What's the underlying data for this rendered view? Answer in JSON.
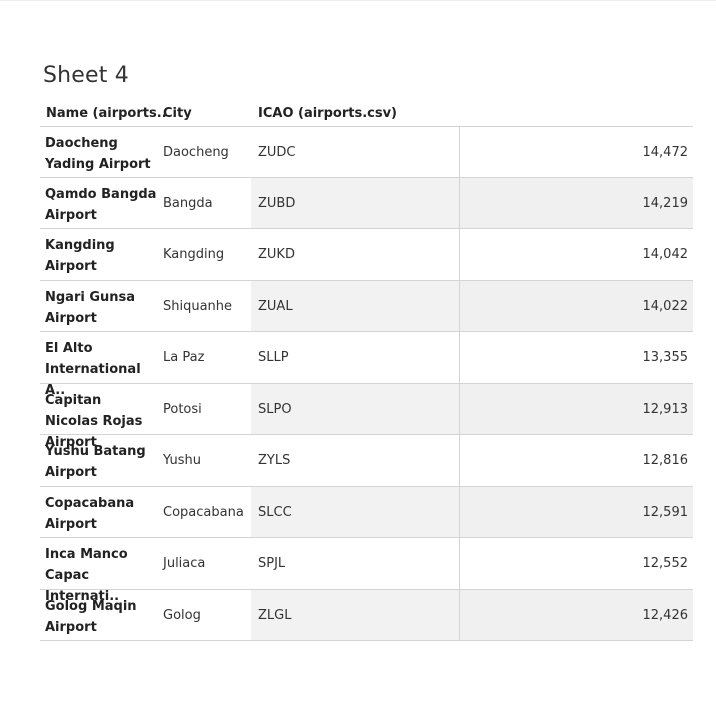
{
  "sheet": {
    "title": "Sheet 4"
  },
  "columns": {
    "name": "Name (airports..",
    "city": "City",
    "icao": "ICAO (airports.csv)"
  },
  "rows": [
    {
      "name": "Daocheng Yading Airport",
      "city": "Daocheng",
      "icao": "ZUDC",
      "value": "14,472"
    },
    {
      "name": "Qamdo Bangda Airport",
      "city": "Bangda",
      "icao": "ZUBD",
      "value": "14,219"
    },
    {
      "name": "Kangding Airport",
      "city": "Kangding",
      "icao": "ZUKD",
      "value": "14,042"
    },
    {
      "name": "Ngari Gunsa Airport",
      "city": "Shiquanhe",
      "icao": "ZUAL",
      "value": "14,022"
    },
    {
      "name": "El Alto International A..",
      "city": "La Paz",
      "icao": "SLLP",
      "value": "13,355"
    },
    {
      "name": "Capitan Nicolas Rojas Airport",
      "city": "Potosi",
      "icao": "SLPO",
      "value": "12,913"
    },
    {
      "name": "Yushu Batang Airport",
      "city": "Yushu",
      "icao": "ZYLS",
      "value": "12,816"
    },
    {
      "name": "Copacabana Airport",
      "city": "Copacabana",
      "icao": "SLCC",
      "value": "12,591"
    },
    {
      "name": "Inca Manco Capac Internati..",
      "city": "Juliaca",
      "icao": "SPJL",
      "value": "12,552"
    },
    {
      "name": "Golog Maqin Airport",
      "city": "Golog",
      "icao": "ZLGL",
      "value": "12,426"
    }
  ]
}
